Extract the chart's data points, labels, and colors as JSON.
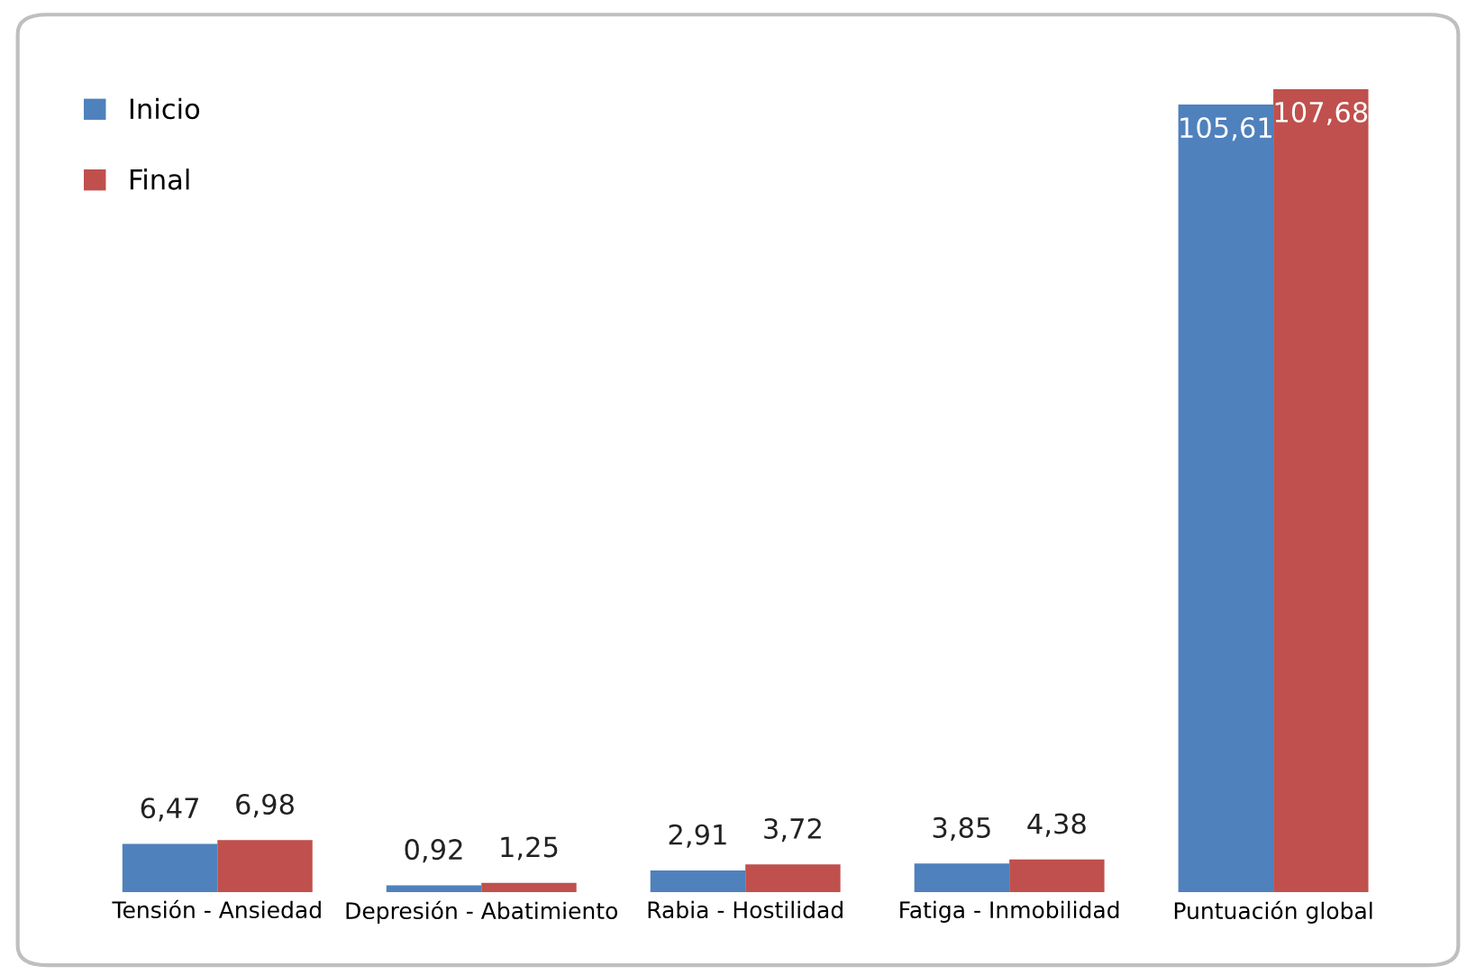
{
  "chart_data": {
    "type": "bar",
    "categories": [
      "Tensión - Ansiedad",
      "Depresión - Abatimiento",
      "Rabia - Hostilidad",
      "Fatiga - Inmobilidad",
      "Puntuación global"
    ],
    "series": [
      {
        "name": "Inicio",
        "color": "#4f81bd",
        "values": [
          6.47,
          0.92,
          2.91,
          3.85,
          105.61
        ],
        "value_labels": [
          "6,47",
          "0,92",
          "2,91",
          "3,85",
          "105,61"
        ]
      },
      {
        "name": "Final",
        "color": "#c0504d",
        "values": [
          6.98,
          1.25,
          3.72,
          4.38,
          107.68
        ],
        "value_labels": [
          "6,98",
          "1,25",
          "3,72",
          "4,38",
          "107,68"
        ]
      }
    ],
    "legend": "top left",
    "grid": false
  }
}
